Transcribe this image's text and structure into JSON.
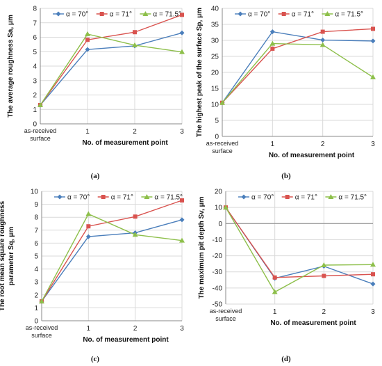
{
  "colors": {
    "alpha_70": "#4a7ebb",
    "alpha_71": "#d9534f",
    "alpha_71_5": "#8dbf4a",
    "grid": "#d9d9d9",
    "axis": "#888888"
  },
  "chart_data": [
    {
      "type": "line",
      "caption": "(a)",
      "categories": [
        "as-received surface",
        "1",
        "2",
        "3"
      ],
      "xlabel": "No. of measurement point",
      "ylabel": "The average roughness Sa, μm",
      "ylim": [
        0,
        8
      ],
      "ytick_step": 1,
      "grid": true,
      "legend_position": "top",
      "series": [
        {
          "name": "α = 70°",
          "marker": "diamond",
          "values": [
            1.3,
            5.15,
            5.4,
            6.3
          ]
        },
        {
          "name": "α = 71°",
          "marker": "square",
          "values": [
            1.3,
            5.82,
            6.35,
            7.55
          ]
        },
        {
          "name": "α = 71.5°",
          "marker": "triangle",
          "values": [
            1.3,
            6.22,
            5.45,
            4.98
          ]
        }
      ]
    },
    {
      "type": "line",
      "caption": "(b)",
      "categories": [
        "as-received surface",
        "1",
        "2",
        "3"
      ],
      "xlabel": "No. of measurement point",
      "ylabel": "The highest peak of the surface Sp, μm",
      "ylim": [
        0,
        40
      ],
      "ytick_step": 5,
      "grid": true,
      "legend_position": "top",
      "series": [
        {
          "name": "α = 70°",
          "marker": "diamond",
          "values": [
            10.5,
            32.7,
            30.1,
            29.8
          ]
        },
        {
          "name": "α = 71°",
          "marker": "square",
          "values": [
            10.5,
            27.4,
            32.7,
            33.6
          ]
        },
        {
          "name": "α = 71.5°",
          "marker": "triangle",
          "values": [
            10.5,
            29.0,
            28.6,
            18.5
          ]
        }
      ]
    },
    {
      "type": "line",
      "caption": "(c)",
      "categories": [
        "as-received surface",
        "1",
        "2",
        "3"
      ],
      "xlabel": "No. of measurement point",
      "ylabel": [
        "The root mean square roughness",
        "parameter Sq, μm"
      ],
      "ylim": [
        0,
        10
      ],
      "ytick_step": 1,
      "grid": true,
      "legend_position": "top",
      "series": [
        {
          "name": "α = 70°",
          "marker": "diamond",
          "values": [
            1.5,
            6.5,
            6.8,
            7.8
          ]
        },
        {
          "name": "α = 71°",
          "marker": "square",
          "values": [
            1.5,
            7.3,
            8.05,
            9.3
          ]
        },
        {
          "name": "α = 71.5°",
          "marker": "triangle",
          "values": [
            1.5,
            8.25,
            6.65,
            6.2
          ]
        }
      ]
    },
    {
      "type": "line",
      "caption": "(d)",
      "categories": [
        "as-received surface",
        "1",
        "2",
        "3"
      ],
      "xlabel": "No. of measurement point",
      "ylabel": "The maximum pit depth Sv, μm",
      "ylim": [
        -50,
        20
      ],
      "ytick_step": 10,
      "grid": true,
      "legend_position": "top",
      "series": [
        {
          "name": "α = 70°",
          "marker": "diamond",
          "values": [
            10,
            -34,
            -26.5,
            -37.5
          ]
        },
        {
          "name": "α = 71°",
          "marker": "square",
          "values": [
            10,
            -33.5,
            -32.5,
            -31.5
          ]
        },
        {
          "name": "α = 71.5°",
          "marker": "triangle",
          "values": [
            10,
            -42.5,
            -25.8,
            -25.5
          ]
        }
      ]
    }
  ]
}
